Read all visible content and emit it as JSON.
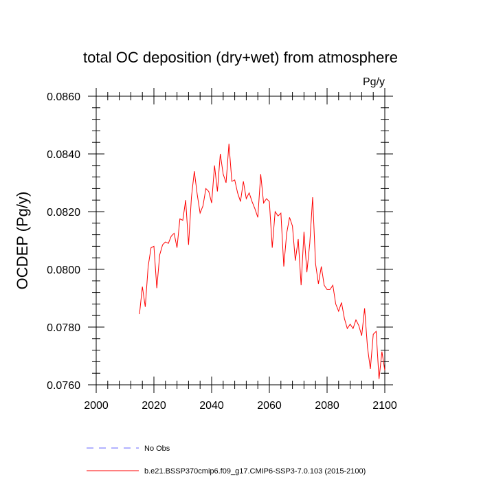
{
  "chart_data": {
    "type": "line",
    "title": "total OC deposition (dry+wet) from atmosphere",
    "units": "Pg/y",
    "xlabel": "",
    "ylabel": "OCDEP  (Pg/y)",
    "xlim": [
      2000,
      2100
    ],
    "ylim": [
      0.076,
      0.086
    ],
    "xticks": [
      2000,
      2020,
      2040,
      2060,
      2080,
      2100
    ],
    "xtick_labels": [
      "2000",
      "2020",
      "2040",
      "2060",
      "2080",
      "2100"
    ],
    "yticks": [
      0.076,
      0.078,
      0.08,
      0.082,
      0.084,
      0.086
    ],
    "ytick_labels": [
      "0.0760",
      "0.0780",
      "0.0800",
      "0.0820",
      "0.0840",
      "0.0860"
    ],
    "series": [
      {
        "name": "b.e21.BSSP370cmip6.f09_g17.CMIP6-SSP3-7.0.103 (2015-2100)",
        "color": "#ff0000",
        "x": [
          2015,
          2016,
          2017,
          2018,
          2019,
          2020,
          2021,
          2022,
          2023,
          2024,
          2025,
          2026,
          2027,
          2028,
          2029,
          2030,
          2031,
          2032,
          2033,
          2034,
          2035,
          2036,
          2037,
          2038,
          2039,
          2040,
          2041,
          2042,
          2043,
          2044,
          2045,
          2046,
          2047,
          2048,
          2049,
          2050,
          2051,
          2052,
          2053,
          2054,
          2055,
          2056,
          2057,
          2058,
          2059,
          2060,
          2061,
          2062,
          2063,
          2064,
          2065,
          2066,
          2067,
          2068,
          2069,
          2070,
          2071,
          2072,
          2073,
          2074,
          2075,
          2076,
          2077,
          2078,
          2079,
          2080,
          2081,
          2082,
          2083,
          2084,
          2085,
          2086,
          2087,
          2088,
          2089,
          2090,
          2091,
          2092,
          2093,
          2094,
          2095,
          2096,
          2097,
          2098,
          2099,
          2100
        ],
        "values": [
          0.07845,
          0.0794,
          0.0787,
          0.0801,
          0.08075,
          0.0808,
          0.07935,
          0.0805,
          0.08085,
          0.08095,
          0.0809,
          0.08115,
          0.08125,
          0.08075,
          0.08175,
          0.0817,
          0.0824,
          0.08085,
          0.0825,
          0.0834,
          0.0826,
          0.08195,
          0.0822,
          0.0828,
          0.0827,
          0.0823,
          0.0836,
          0.0827,
          0.084,
          0.0833,
          0.083,
          0.08435,
          0.08305,
          0.0831,
          0.08265,
          0.08235,
          0.08305,
          0.08245,
          0.08265,
          0.08235,
          0.0821,
          0.0818,
          0.0833,
          0.0823,
          0.08245,
          0.08235,
          0.08075,
          0.082,
          0.08185,
          0.08195,
          0.0801,
          0.08125,
          0.0818,
          0.0815,
          0.0803,
          0.08105,
          0.07945,
          0.0813,
          0.0799,
          0.0809,
          0.0825,
          0.0802,
          0.0795,
          0.0801,
          0.07945,
          0.0793,
          0.0793,
          0.07945,
          0.0788,
          0.07855,
          0.07885,
          0.0783,
          0.07795,
          0.0781,
          0.07795,
          0.07825,
          0.07805,
          0.0777,
          0.07865,
          0.0773,
          0.07655,
          0.07775,
          0.07785,
          0.0762,
          0.07715,
          0.0765
        ]
      },
      {
        "name": "No Obs",
        "color": "#6666ff",
        "x": [],
        "values": []
      }
    ],
    "legend": [
      {
        "label": "No Obs",
        "style": "dashed",
        "color": "#6666ff"
      },
      {
        "label": "b.e21.BSSP370cmip6.f09_g17.CMIP6-SSP3-7.0.103 (2015-2100)",
        "style": "solid",
        "color": "#ff0000"
      }
    ],
    "legend_position": "bottom",
    "grid": false
  }
}
